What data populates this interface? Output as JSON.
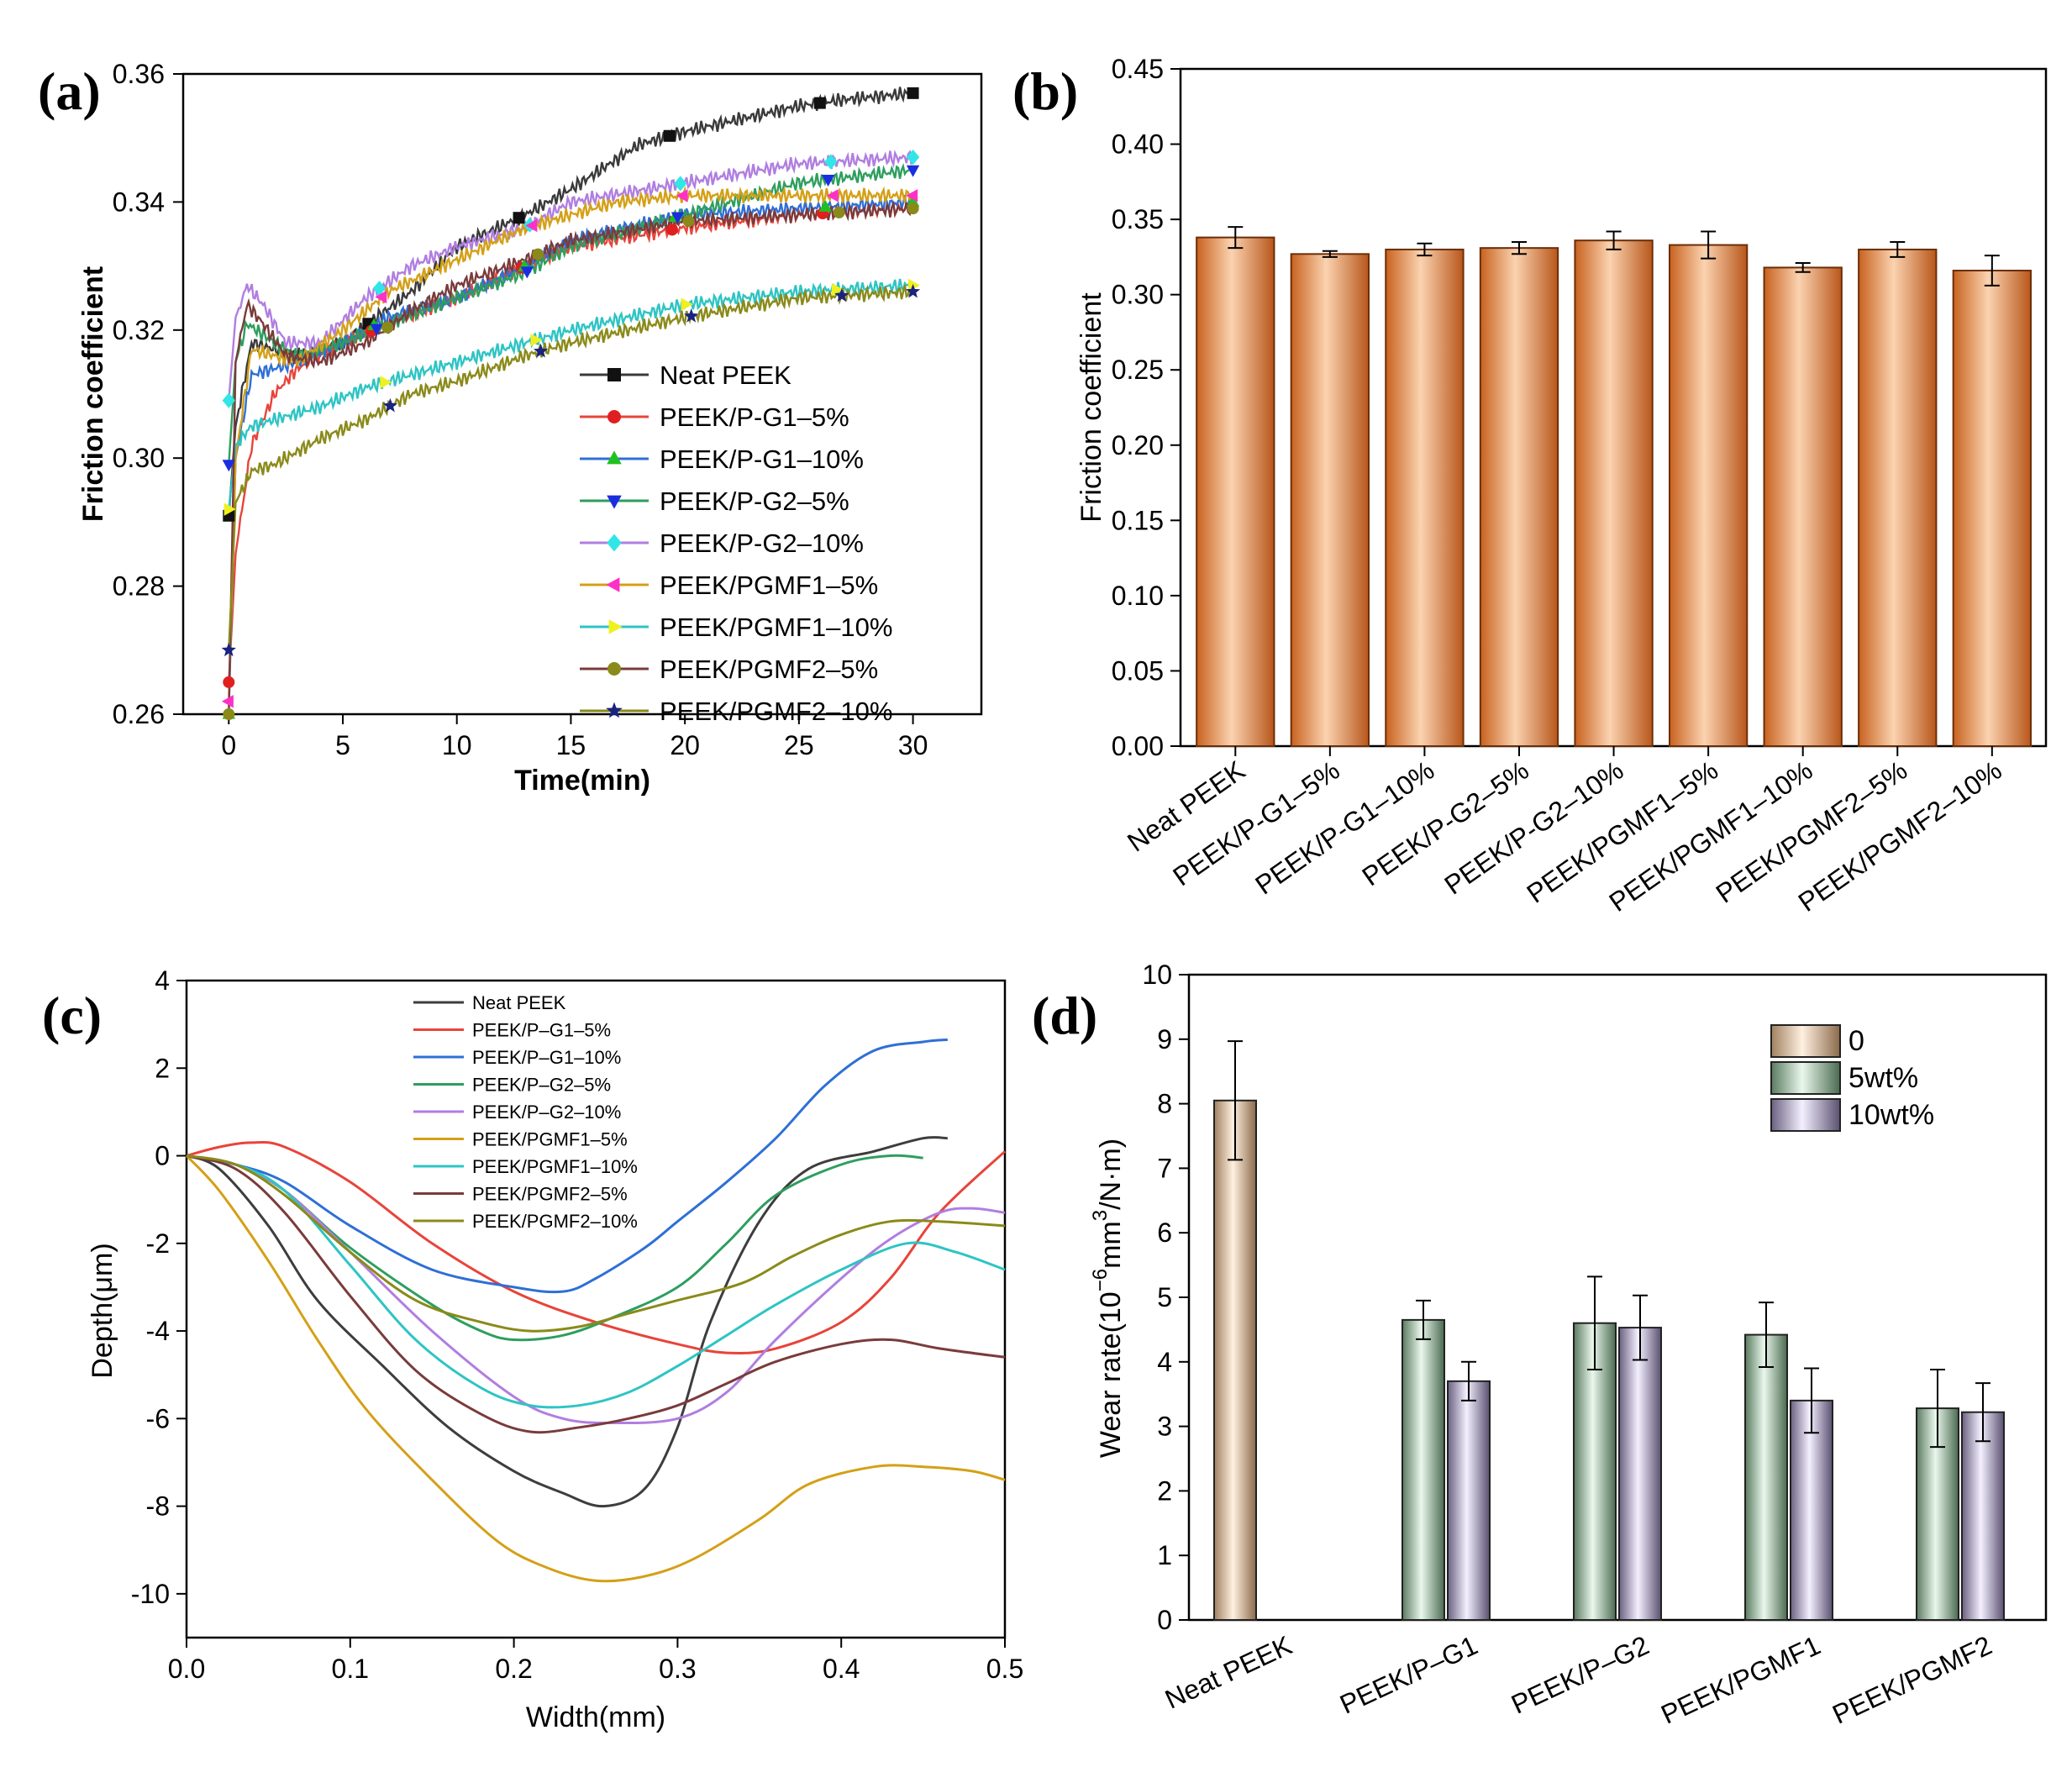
{
  "chart_data": [
    {
      "panel": "(a)",
      "type": "line",
      "xlabel": "Time(min)",
      "ylabel": "Friction coefficient",
      "xlim": [
        -2,
        33
      ],
      "ylim": [
        0.26,
        0.36
      ],
      "xticks": [
        0,
        5,
        10,
        15,
        20,
        25,
        30
      ],
      "yticks": [
        0.26,
        0.28,
        0.3,
        0.32,
        0.34,
        0.36
      ],
      "ytick_labels": [
        "0.26",
        "0.28",
        "0.30",
        "0.32",
        "0.34",
        "0.36"
      ],
      "series": [
        {
          "name": "Neat PEEK",
          "color": "#3a3a3a",
          "marker": "square",
          "marker_color": "#111111",
          "x": [
            0,
            0.3,
            1,
            2,
            3,
            5,
            8,
            10,
            13,
            15,
            18,
            20,
            25,
            27,
            30
          ],
          "y": [
            0.291,
            0.305,
            0.318,
            0.317,
            0.316,
            0.318,
            0.326,
            0.333,
            0.338,
            0.342,
            0.349,
            0.351,
            0.355,
            0.356,
            0.357
          ]
        },
        {
          "name": "PEEK/P-G1–5%",
          "color": "#e8443a",
          "marker": "circle",
          "marker_color": "#e02020",
          "x": [
            0,
            0.3,
            1,
            2,
            3,
            5,
            7,
            10,
            13,
            15,
            20,
            25,
            30
          ],
          "y": [
            0.265,
            0.285,
            0.302,
            0.31,
            0.314,
            0.318,
            0.321,
            0.325,
            0.33,
            0.333,
            0.336,
            0.338,
            0.339
          ]
        },
        {
          "name": "PEEK/P-G1–10%",
          "color": "#2f6fd6",
          "marker": "triangle-up",
          "marker_color": "#20c020",
          "x": [
            0,
            0.3,
            1,
            2,
            3,
            5,
            7,
            10,
            13,
            15,
            20,
            25,
            30
          ],
          "y": [
            0.26,
            0.3,
            0.313,
            0.314,
            0.315,
            0.318,
            0.322,
            0.325,
            0.33,
            0.334,
            0.338,
            0.339,
            0.34
          ]
        },
        {
          "name": "PEEK/P-G2–5%",
          "color": "#2e9e5e",
          "marker": "triangle-down",
          "marker_color": "#1a2ee0",
          "x": [
            0,
            0.3,
            0.8,
            2,
            3,
            5,
            7,
            10,
            13,
            15,
            20,
            25,
            30
          ],
          "y": [
            0.299,
            0.315,
            0.321,
            0.318,
            0.316,
            0.318,
            0.321,
            0.325,
            0.329,
            0.333,
            0.338,
            0.343,
            0.345
          ]
        },
        {
          "name": "PEEK/P-G2–10%",
          "color": "#b07ee0",
          "marker": "diamond",
          "marker_color": "#30e6e6",
          "x": [
            0,
            0.3,
            0.8,
            1.5,
            2.5,
            4,
            6,
            8,
            10,
            13,
            15,
            20,
            25,
            30
          ],
          "y": [
            0.309,
            0.322,
            0.327,
            0.324,
            0.318,
            0.318,
            0.325,
            0.33,
            0.333,
            0.336,
            0.34,
            0.343,
            0.346,
            0.347
          ]
        },
        {
          "name": "PEEK/PGMF1–5%",
          "color": "#d4a017",
          "marker": "triangle-left",
          "marker_color": "#ff30c8",
          "x": [
            0,
            0.3,
            1,
            2,
            3,
            5,
            7,
            10,
            13,
            15,
            17,
            20,
            25,
            30
          ],
          "y": [
            0.262,
            0.3,
            0.317,
            0.316,
            0.315,
            0.32,
            0.326,
            0.331,
            0.336,
            0.338,
            0.34,
            0.341,
            0.341,
            0.341
          ]
        },
        {
          "name": "PEEK/PGMF1–10%",
          "color": "#2ec4c4",
          "marker": "triangle-right",
          "marker_color": "#f0f020",
          "x": [
            0,
            0.3,
            1,
            2,
            4,
            6,
            8,
            10,
            13,
            15,
            20,
            25,
            30
          ],
          "y": [
            0.292,
            0.302,
            0.305,
            0.306,
            0.308,
            0.311,
            0.313,
            0.315,
            0.318,
            0.32,
            0.324,
            0.326,
            0.327
          ]
        },
        {
          "name": "PEEK/PGMF2–5%",
          "color": "#7a3b3b",
          "marker": "circle",
          "marker_color": "#8a8a1a",
          "x": [
            0,
            0.3,
            0.8,
            1.5,
            2.5,
            4,
            6,
            8,
            10,
            13,
            15,
            20,
            25,
            30
          ],
          "y": [
            0.26,
            0.315,
            0.324,
            0.321,
            0.316,
            0.315,
            0.318,
            0.323,
            0.327,
            0.331,
            0.334,
            0.337,
            0.338,
            0.339
          ]
        },
        {
          "name": "PEEK/PGMF2–10%",
          "color": "#8a8a1a",
          "marker": "star",
          "marker_color": "#1a237e",
          "x": [
            0,
            0.3,
            1,
            2,
            4,
            6,
            8,
            10,
            13,
            15,
            20,
            25,
            30
          ],
          "y": [
            0.27,
            0.293,
            0.298,
            0.299,
            0.303,
            0.306,
            0.31,
            0.312,
            0.316,
            0.318,
            0.322,
            0.325,
            0.326
          ]
        }
      ]
    },
    {
      "panel": "(b)",
      "type": "bar",
      "xlabel": "",
      "ylabel": "Friction coefficient",
      "ylim": [
        0,
        0.45
      ],
      "yticks": [
        0.0,
        0.05,
        0.1,
        0.15,
        0.2,
        0.25,
        0.3,
        0.35,
        0.4,
        0.45
      ],
      "ytick_labels": [
        "0.00",
        "0.05",
        "0.10",
        "0.15",
        "0.20",
        "0.25",
        "0.30",
        "0.35",
        "0.40",
        "0.45"
      ],
      "categories": [
        "Neat PEEK",
        "PEEK/P-G1–5%",
        "PEEK/P-G1–10%",
        "PEEK/P-G2–5%",
        "PEEK/P-G2–10%",
        "PEEK/PGMF1–5%",
        "PEEK/PGMF1–10%",
        "PEEK/PGMF2–5%",
        "PEEK/PGMF2–10%"
      ],
      "values": [
        0.338,
        0.327,
        0.33,
        0.331,
        0.336,
        0.333,
        0.318,
        0.33,
        0.316
      ],
      "errors": [
        0.007,
        0.002,
        0.004,
        0.004,
        0.006,
        0.009,
        0.003,
        0.005,
        0.01
      ],
      "bar_color": "#e8925a"
    },
    {
      "panel": "(c)",
      "type": "line",
      "xlabel": "Width(mm)",
      "ylabel": "Depth(μm)",
      "xlim": [
        0,
        0.5
      ],
      "ylim": [
        -11,
        4
      ],
      "xticks": [
        0.0,
        0.1,
        0.2,
        0.3,
        0.4,
        0.5
      ],
      "xtick_labels": [
        "0.0",
        "0.1",
        "0.2",
        "0.3",
        "0.4",
        "0.5"
      ],
      "yticks": [
        -10,
        -8,
        -6,
        -4,
        -2,
        0,
        2,
        4
      ],
      "ytick_labels": [
        "-10",
        "-8",
        "-6",
        "-4",
        "-2",
        "0",
        "2",
        "4"
      ],
      "series": [
        {
          "name": "Neat PEEK",
          "color": "#3d3d3d",
          "x": [
            0,
            0.02,
            0.05,
            0.08,
            0.12,
            0.16,
            0.2,
            0.23,
            0.255,
            0.28,
            0.3,
            0.32,
            0.35,
            0.38,
            0.42,
            0.45,
            0.465
          ],
          "y": [
            0,
            -0.3,
            -1.6,
            -3.3,
            -4.8,
            -6.2,
            -7.2,
            -7.7,
            -8.0,
            -7.6,
            -6.2,
            -3.8,
            -1.5,
            -0.3,
            0.1,
            0.4,
            0.4
          ]
        },
        {
          "name": "PEEK/P–G1–5%",
          "color": "#e8443a",
          "x": [
            0,
            0.02,
            0.04,
            0.06,
            0.1,
            0.15,
            0.2,
            0.25,
            0.3,
            0.33,
            0.36,
            0.4,
            0.43,
            0.46,
            0.5
          ],
          "y": [
            0,
            0.2,
            0.3,
            0.2,
            -0.6,
            -2.0,
            -3.1,
            -3.8,
            -4.3,
            -4.5,
            -4.4,
            -3.8,
            -2.8,
            -1.3,
            0.1
          ]
        },
        {
          "name": "PEEK/P–G1–10%",
          "color": "#2f6fd6",
          "x": [
            0,
            0.03,
            0.06,
            0.1,
            0.15,
            0.2,
            0.23,
            0.25,
            0.28,
            0.3,
            0.33,
            0.36,
            0.39,
            0.42,
            0.45,
            0.465
          ],
          "y": [
            0,
            -0.2,
            -0.6,
            -1.6,
            -2.6,
            -3.0,
            -3.1,
            -2.8,
            -2.1,
            -1.5,
            -0.6,
            0.4,
            1.6,
            2.4,
            2.6,
            2.65
          ]
        },
        {
          "name": "PEEK/P–G2–5%",
          "color": "#2e9e5e",
          "x": [
            0,
            0.03,
            0.06,
            0.1,
            0.15,
            0.18,
            0.2,
            0.23,
            0.26,
            0.3,
            0.33,
            0.36,
            0.4,
            0.43,
            0.45
          ],
          "y": [
            0,
            -0.2,
            -0.8,
            -2.1,
            -3.4,
            -4.0,
            -4.2,
            -4.1,
            -3.7,
            -3.0,
            -2.0,
            -0.9,
            -0.2,
            0.0,
            -0.05
          ]
        },
        {
          "name": "PEEK/P–G2–10%",
          "color": "#b07ee0",
          "x": [
            0,
            0.03,
            0.06,
            0.1,
            0.15,
            0.2,
            0.23,
            0.26,
            0.3,
            0.33,
            0.36,
            0.4,
            0.43,
            0.46,
            0.48,
            0.5
          ],
          "y": [
            0,
            -0.2,
            -0.8,
            -2.2,
            -4.0,
            -5.5,
            -6.0,
            -6.1,
            -6.0,
            -5.4,
            -4.2,
            -2.8,
            -1.9,
            -1.3,
            -1.2,
            -1.3
          ]
        },
        {
          "name": "PEEK/PGMF1–5%",
          "color": "#d4a017",
          "x": [
            0,
            0.02,
            0.05,
            0.08,
            0.11,
            0.15,
            0.19,
            0.22,
            0.25,
            0.28,
            0.31,
            0.35,
            0.38,
            0.42,
            0.45,
            0.48,
            0.5
          ],
          "y": [
            0,
            -0.8,
            -2.4,
            -4.2,
            -5.8,
            -7.4,
            -8.8,
            -9.4,
            -9.7,
            -9.6,
            -9.2,
            -8.3,
            -7.5,
            -7.1,
            -7.1,
            -7.2,
            -7.4
          ]
        },
        {
          "name": "PEEK/PGMF1–10%",
          "color": "#2ec4c4",
          "x": [
            0,
            0.03,
            0.06,
            0.1,
            0.14,
            0.18,
            0.21,
            0.24,
            0.27,
            0.3,
            0.33,
            0.36,
            0.4,
            0.44,
            0.47,
            0.5
          ],
          "y": [
            0,
            -0.2,
            -0.8,
            -2.5,
            -4.2,
            -5.3,
            -5.7,
            -5.7,
            -5.4,
            -4.8,
            -4.1,
            -3.4,
            -2.6,
            -2.0,
            -2.2,
            -2.6
          ]
        },
        {
          "name": "PEEK/PGMF2–5%",
          "color": "#7a3b3b",
          "x": [
            0,
            0.03,
            0.06,
            0.1,
            0.14,
            0.18,
            0.21,
            0.24,
            0.27,
            0.3,
            0.33,
            0.36,
            0.4,
            0.43,
            0.46,
            0.5
          ],
          "y": [
            0,
            -0.3,
            -1.3,
            -3.2,
            -4.9,
            -5.9,
            -6.3,
            -6.2,
            -6.0,
            -5.7,
            -5.2,
            -4.7,
            -4.3,
            -4.2,
            -4.4,
            -4.6
          ]
        },
        {
          "name": "PEEK/PGMF2–10%",
          "color": "#8a8a1a",
          "x": [
            0,
            0.03,
            0.06,
            0.1,
            0.14,
            0.18,
            0.21,
            0.24,
            0.27,
            0.3,
            0.34,
            0.37,
            0.4,
            0.43,
            0.46,
            0.5
          ],
          "y": [
            0,
            -0.2,
            -0.9,
            -2.2,
            -3.3,
            -3.8,
            -4.0,
            -3.9,
            -3.6,
            -3.3,
            -2.9,
            -2.3,
            -1.8,
            -1.5,
            -1.5,
            -1.6
          ]
        }
      ]
    },
    {
      "panel": "(d)",
      "type": "bar",
      "xlabel": "",
      "ylabel_main": "Wear rate(10",
      "ylabel_sup1": "−6",
      "ylabel_mid": "mm",
      "ylabel_sup2": "3",
      "ylabel_end": "/N·m)",
      "ylim": [
        0,
        10
      ],
      "yticks": [
        0,
        1,
        2,
        3,
        4,
        5,
        6,
        7,
        8,
        9,
        10
      ],
      "categories": [
        "Neat PEEK",
        "PEEK/P–G1",
        "PEEK/P–G2",
        "PEEK/PGMF1",
        "PEEK/PGMF2"
      ],
      "series": [
        {
          "name": "0",
          "color": "#f3d7b8",
          "values": [
            8.05,
            null,
            null,
            null,
            null
          ],
          "errors": [
            0.92,
            null,
            null,
            null,
            null
          ]
        },
        {
          "name": "5wt%",
          "color": "#c6e4cc",
          "values": [
            null,
            4.65,
            4.6,
            4.42,
            3.28
          ],
          "errors": [
            null,
            0.3,
            0.72,
            0.5,
            0.6
          ]
        },
        {
          "name": "10wt%",
          "color": "#d8d0ec",
          "values": [
            null,
            3.7,
            4.53,
            3.4,
            3.22
          ],
          "errors": [
            null,
            0.3,
            0.5,
            0.5,
            0.45
          ]
        }
      ]
    }
  ]
}
